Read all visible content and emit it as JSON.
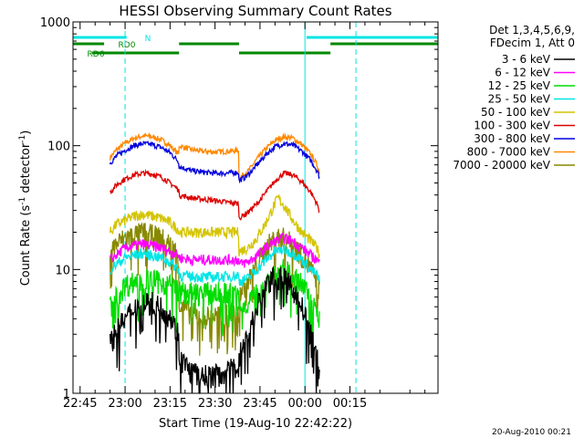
{
  "chart_data": {
    "type": "line",
    "title": "HESSI Observing Summary Count Rates",
    "xlabel": "Start Time (19-Aug-10 22:42:22)",
    "ylabel_main": "Count Rate (s",
    "ylabel_sup1": "-1",
    "ylabel_mid": " detector",
    "ylabel_sup2": "-1",
    "ylabel_end": ")",
    "y_scale": "log",
    "ylim": [
      1,
      1000
    ],
    "xlim_minutes": [
      -17.37,
      104.37
    ],
    "x_ticks": [
      {
        "m": -15,
        "label": "22:45"
      },
      {
        "m": 0,
        "label": "23:00"
      },
      {
        "m": 15,
        "label": "23:15"
      },
      {
        "m": 30,
        "label": "23:30"
      },
      {
        "m": 45,
        "label": "23:45"
      },
      {
        "m": 60,
        "label": "00:00"
      },
      {
        "m": 75,
        "label": "00:15"
      }
    ],
    "y_ticks": [
      {
        "v": 1,
        "label": "1"
      },
      {
        "v": 10,
        "label": "10"
      },
      {
        "v": 100,
        "label": "100"
      },
      {
        "v": 1000,
        "label": "1000"
      }
    ],
    "legend": {
      "header1": "Det 1,3,4,5,6,9,",
      "header2": "FDecim 1, Att 0",
      "entries": [
        {
          "label": "3 - 6 keV",
          "color": "#000000"
        },
        {
          "label": "6 - 12 keV",
          "color": "#ff00ff"
        },
        {
          "label": "12 - 25 keV",
          "color": "#00dd00"
        },
        {
          "label": "25 - 50 keV",
          "color": "#00e5e5"
        },
        {
          "label": "50 - 100 keV",
          "color": "#d4c400"
        },
        {
          "label": "100 - 300 keV",
          "color": "#dd0000"
        },
        {
          "label": "300 - 800 keV",
          "color": "#0000dd"
        },
        {
          "label": "800 - 7000 keV",
          "color": "#ff8800"
        },
        {
          "label": "7000 - 20000 keV",
          "color": "#888800"
        }
      ]
    },
    "flags": [
      {
        "label": "N",
        "color": "#00e5e5",
        "segments": [
          [
            -17.37,
            0.5
          ],
          [
            60.5,
            104.37
          ]
        ]
      },
      {
        "label": "RD0",
        "color": "#008800",
        "segments": [
          [
            -17.37,
            -7.0
          ],
          [
            18.0,
            38.0
          ],
          [
            68.5,
            104.37
          ]
        ]
      },
      {
        "label": "RD6",
        "color": "#008800",
        "segments": [
          [
            -11.0,
            18.0
          ],
          [
            38.0,
            68.5
          ]
        ]
      }
    ],
    "vlines": [
      {
        "m": 0.0,
        "color": "#00e5e5",
        "style": "dashed"
      },
      {
        "m": 60.0,
        "color": "#00e5e5",
        "style": "solid"
      },
      {
        "m": 77.0,
        "color": "#00e5e5",
        "style": "dashed"
      }
    ],
    "series": [
      {
        "color": "#ff8800",
        "points": [
          [
            -5,
            80
          ],
          [
            -3,
            92
          ],
          [
            0,
            105
          ],
          [
            3,
            115
          ],
          [
            6,
            120
          ],
          [
            9,
            118
          ],
          [
            12,
            112
          ],
          [
            15,
            100
          ],
          [
            17.9,
            85
          ],
          [
            18,
            100
          ],
          [
            22,
            93
          ],
          [
            26,
            90
          ],
          [
            30,
            89
          ],
          [
            34,
            90
          ],
          [
            37.9,
            92
          ],
          [
            38,
            55
          ],
          [
            41,
            62
          ],
          [
            44,
            78
          ],
          [
            47,
            95
          ],
          [
            50,
            110
          ],
          [
            53,
            118
          ],
          [
            56,
            115
          ],
          [
            59,
            102
          ],
          [
            62,
            85
          ],
          [
            64,
            70
          ],
          [
            65,
            60
          ]
        ]
      },
      {
        "color": "#0000dd",
        "points": [
          [
            -5,
            72
          ],
          [
            -3,
            82
          ],
          [
            0,
            92
          ],
          [
            3,
            100
          ],
          [
            6,
            104
          ],
          [
            9,
            102
          ],
          [
            12,
            97
          ],
          [
            15,
            88
          ],
          [
            17.9,
            74
          ],
          [
            18,
            68
          ],
          [
            22,
            63
          ],
          [
            26,
            61
          ],
          [
            30,
            60
          ],
          [
            34,
            60
          ],
          [
            37.9,
            61
          ],
          [
            38,
            52
          ],
          [
            41,
            58
          ],
          [
            44,
            70
          ],
          [
            47,
            85
          ],
          [
            50,
            98
          ],
          [
            53,
            104
          ],
          [
            56,
            101
          ],
          [
            59,
            90
          ],
          [
            62,
            76
          ],
          [
            64,
            63
          ],
          [
            65,
            55
          ]
        ]
      },
      {
        "color": "#dd0000",
        "points": [
          [
            -5,
            42
          ],
          [
            -3,
            48
          ],
          [
            0,
            54
          ],
          [
            3,
            58
          ],
          [
            6,
            60
          ],
          [
            9,
            59
          ],
          [
            12,
            56
          ],
          [
            15,
            50
          ],
          [
            17.9,
            44
          ],
          [
            18,
            40
          ],
          [
            22,
            38
          ],
          [
            26,
            37
          ],
          [
            30,
            36
          ],
          [
            34,
            35
          ],
          [
            37.9,
            34
          ],
          [
            38,
            26
          ],
          [
            41,
            29
          ],
          [
            44,
            34
          ],
          [
            47,
            42
          ],
          [
            50,
            52
          ],
          [
            53,
            60
          ],
          [
            56,
            58
          ],
          [
            59,
            51
          ],
          [
            62,
            42
          ],
          [
            64,
            34
          ],
          [
            65,
            29
          ]
        ]
      },
      {
        "color": "#d4c400",
        "points": [
          [
            -5,
            20
          ],
          [
            -3,
            23
          ],
          [
            0,
            25
          ],
          [
            3,
            27
          ],
          [
            6,
            28
          ],
          [
            9,
            27
          ],
          [
            12,
            26
          ],
          [
            15,
            24
          ],
          [
            17.9,
            21
          ],
          [
            18,
            20
          ],
          [
            22,
            20
          ],
          [
            26,
            20
          ],
          [
            30,
            20
          ],
          [
            34,
            20
          ],
          [
            37.9,
            20
          ],
          [
            38,
            14
          ],
          [
            41,
            15
          ],
          [
            44,
            18
          ],
          [
            47,
            24
          ],
          [
            50,
            34
          ],
          [
            51,
            38
          ],
          [
            53,
            33
          ],
          [
            56,
            25
          ],
          [
            59,
            20
          ],
          [
            62,
            17
          ],
          [
            64,
            15
          ],
          [
            65,
            13
          ]
        ]
      },
      {
        "color": "#888800",
        "points": [
          [
            -5,
            14
          ],
          [
            -3,
            16
          ],
          [
            0,
            18
          ],
          [
            3,
            19
          ],
          [
            6,
            20
          ],
          [
            9,
            19
          ],
          [
            12,
            18
          ],
          [
            15,
            16
          ],
          [
            17.9,
            13
          ],
          [
            18,
            5.2
          ],
          [
            22,
            4.5
          ],
          [
            26,
            4.2
          ],
          [
            30,
            4.2
          ],
          [
            34,
            4.3
          ],
          [
            37.9,
            4.5
          ],
          [
            38,
            6.5
          ],
          [
            41,
            8
          ],
          [
            44,
            11
          ],
          [
            47,
            15
          ],
          [
            50,
            18
          ],
          [
            53,
            18
          ],
          [
            56,
            16
          ],
          [
            59,
            13
          ],
          [
            62,
            10
          ],
          [
            64,
            8
          ],
          [
            65,
            6.5
          ]
        ]
      },
      {
        "color": "#ff00ff",
        "points": [
          [
            -5,
            12
          ],
          [
            -3,
            13
          ],
          [
            0,
            15
          ],
          [
            3,
            15.5
          ],
          [
            6,
            16
          ],
          [
            9,
            15.5
          ],
          [
            12,
            15
          ],
          [
            15,
            14
          ],
          [
            17.9,
            13
          ],
          [
            18,
            12.5
          ],
          [
            22,
            12
          ],
          [
            26,
            12
          ],
          [
            30,
            12
          ],
          [
            34,
            12
          ],
          [
            37.9,
            12
          ],
          [
            38,
            11
          ],
          [
            41,
            11.5
          ],
          [
            44,
            13
          ],
          [
            47,
            15
          ],
          [
            50,
            17
          ],
          [
            53,
            18
          ],
          [
            56,
            17
          ],
          [
            59,
            15
          ],
          [
            62,
            13
          ],
          [
            64,
            12
          ],
          [
            65,
            11
          ]
        ]
      },
      {
        "color": "#00e5e5",
        "points": [
          [
            -5,
            10
          ],
          [
            -3,
            11
          ],
          [
            0,
            12.5
          ],
          [
            3,
            13
          ],
          [
            6,
            13.5
          ],
          [
            9,
            13
          ],
          [
            12,
            12.5
          ],
          [
            15,
            11.5
          ],
          [
            17.9,
            10
          ],
          [
            18,
            9
          ],
          [
            22,
            8.8
          ],
          [
            26,
            8.7
          ],
          [
            30,
            8.7
          ],
          [
            34,
            8.8
          ],
          [
            37.9,
            9
          ],
          [
            38,
            8
          ],
          [
            41,
            8.5
          ],
          [
            44,
            10
          ],
          [
            47,
            12
          ],
          [
            50,
            14
          ],
          [
            53,
            14.5
          ],
          [
            56,
            13.5
          ],
          [
            59,
            12
          ],
          [
            62,
            10
          ],
          [
            64,
            9
          ],
          [
            65,
            8
          ]
        ]
      },
      {
        "color": "#00dd00",
        "points": [
          [
            -5,
            5
          ],
          [
            -3,
            6
          ],
          [
            0,
            7.5
          ],
          [
            3,
            8
          ],
          [
            6,
            8.5
          ],
          [
            9,
            8.2
          ],
          [
            12,
            8
          ],
          [
            15,
            7.5
          ],
          [
            17.9,
            7
          ],
          [
            18,
            6.5
          ],
          [
            22,
            6.5
          ],
          [
            26,
            6.5
          ],
          [
            30,
            6.5
          ],
          [
            34,
            6.5
          ],
          [
            37.9,
            6.5
          ],
          [
            38,
            5
          ],
          [
            41,
            5.5
          ],
          [
            44,
            6.5
          ],
          [
            47,
            8
          ],
          [
            50,
            9.5
          ],
          [
            53,
            10
          ],
          [
            56,
            9
          ],
          [
            59,
            7.5
          ],
          [
            62,
            6
          ],
          [
            64,
            5
          ],
          [
            65,
            4
          ]
        ]
      },
      {
        "color": "#000000",
        "points": [
          [
            -5,
            2.5
          ],
          [
            -3,
            3.2
          ],
          [
            0,
            4
          ],
          [
            3,
            5
          ],
          [
            6,
            5.5
          ],
          [
            9,
            5.4
          ],
          [
            12,
            5
          ],
          [
            15,
            4.2
          ],
          [
            17.9,
            3
          ],
          [
            18,
            2
          ],
          [
            22,
            1.5
          ],
          [
            26,
            1.4
          ],
          [
            30,
            1.4
          ],
          [
            34,
            1.5
          ],
          [
            37.9,
            1.7
          ],
          [
            38,
            2
          ],
          [
            41,
            3
          ],
          [
            44,
            5
          ],
          [
            47,
            7.5
          ],
          [
            50,
            8.8
          ],
          [
            53,
            8.5
          ],
          [
            56,
            7
          ],
          [
            59,
            5
          ],
          [
            62,
            3
          ],
          [
            64,
            2
          ],
          [
            65,
            1.5
          ]
        ]
      }
    ]
  },
  "footer": {
    "timestamp": "20-Aug-2010 00:21"
  }
}
